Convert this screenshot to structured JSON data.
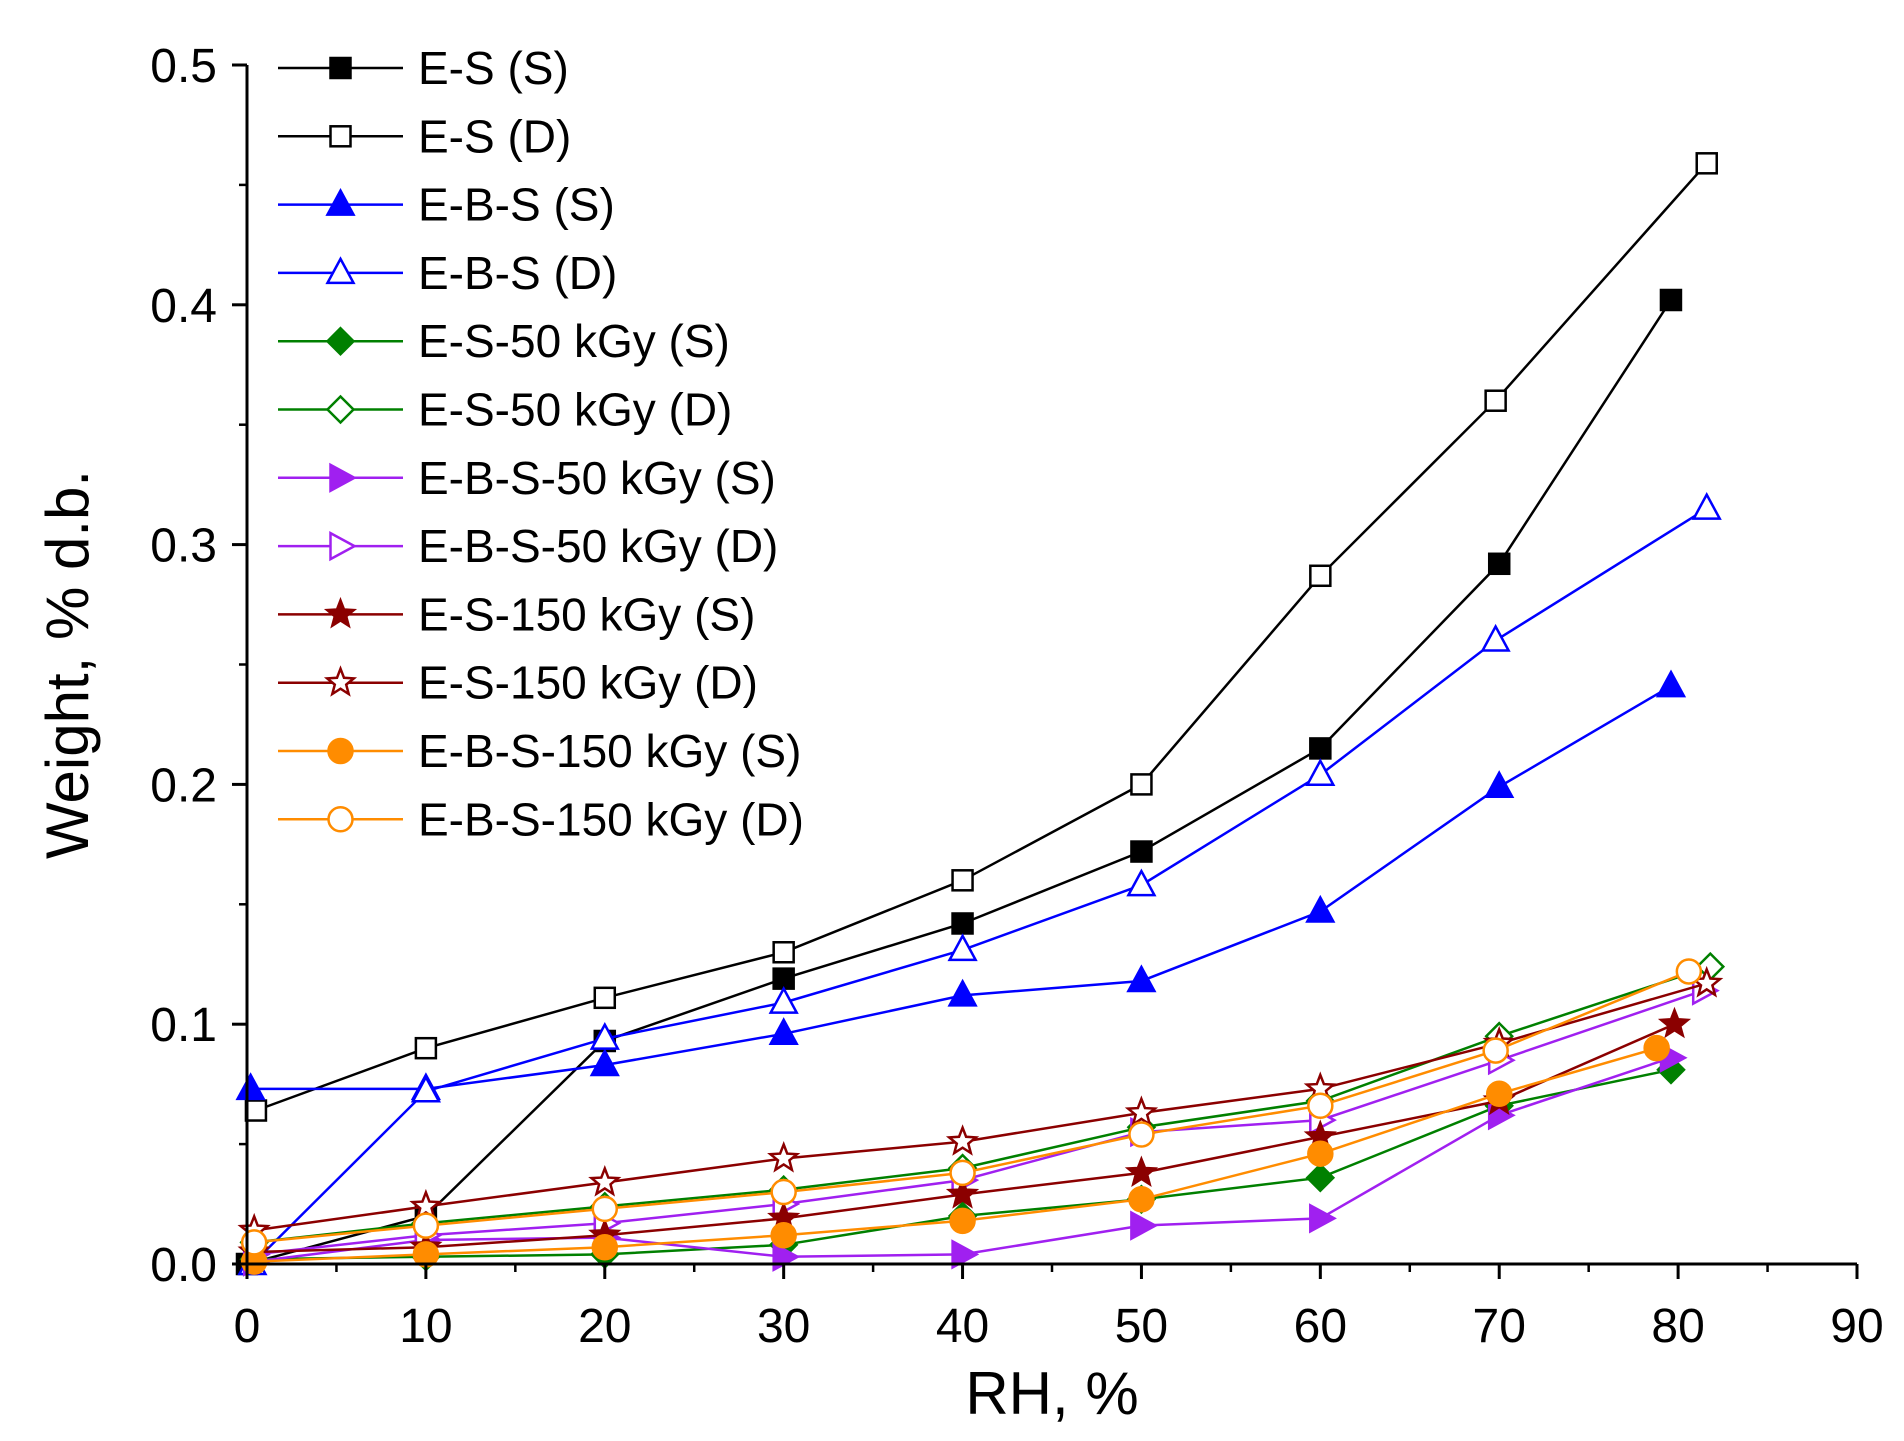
{
  "chart_data": {
    "type": "line",
    "xlabel": "RH, %",
    "ylabel": "Weight, % d.b.",
    "xlim": [
      0,
      90
    ],
    "ylim": [
      0,
      0.5
    ],
    "xticks": [
      "0",
      "10",
      "20",
      "30",
      "40",
      "50",
      "60",
      "70",
      "80",
      "90"
    ],
    "yticks": [
      "0.0",
      "0.1",
      "0.2",
      "0.3",
      "0.4",
      "0.5"
    ],
    "grid": false,
    "legend_position": "top-left",
    "series": [
      {
        "name": "E-S (S)",
        "color": "#000000",
        "marker": "square",
        "filled": true,
        "x": [
          0,
          10,
          20,
          30,
          40,
          50,
          60,
          70,
          79.6
        ],
        "y": [
          0.0,
          0.02,
          0.093,
          0.119,
          0.142,
          0.172,
          0.215,
          0.292,
          0.402
        ]
      },
      {
        "name": "E-S (D)",
        "color": "#000000",
        "marker": "square",
        "filled": false,
        "x": [
          0.5,
          10,
          20,
          30,
          40,
          50,
          60,
          69.8,
          81.6
        ],
        "y": [
          0.064,
          0.09,
          0.111,
          0.13,
          0.16,
          0.2,
          0.287,
          0.36,
          0.459
        ]
      },
      {
        "name": "E-B-S (S)",
        "color": "#0000ff",
        "marker": "triangle-up",
        "filled": true,
        "x": [
          0.2,
          10,
          20,
          30,
          40,
          50,
          60,
          70,
          79.6
        ],
        "y": [
          0.073,
          0.073,
          0.083,
          0.096,
          0.112,
          0.118,
          0.147,
          0.199,
          0.241
        ]
      },
      {
        "name": "E-B-S (D)",
        "color": "#0000ff",
        "marker": "triangle-up",
        "filled": false,
        "x": [
          0.3,
          10,
          20,
          30,
          40,
          50,
          60,
          69.8,
          81.6
        ],
        "y": [
          0.0,
          0.072,
          0.094,
          0.109,
          0.131,
          0.158,
          0.204,
          0.26,
          0.315
        ]
      },
      {
        "name": "E-S-50 kGy (S)",
        "color": "#008000",
        "marker": "diamond",
        "filled": true,
        "x": [
          0.4,
          10,
          20,
          30,
          40,
          50,
          60,
          70,
          79.6
        ],
        "y": [
          0.002,
          0.003,
          0.004,
          0.008,
          0.02,
          0.027,
          0.036,
          0.066,
          0.081
        ]
      },
      {
        "name": "E-S-50 kGy (D)",
        "color": "#008000",
        "marker": "diamond",
        "filled": false,
        "x": [
          0.4,
          10,
          20,
          30,
          40,
          50,
          60,
          70,
          81.8
        ],
        "y": [
          0.009,
          0.017,
          0.024,
          0.031,
          0.04,
          0.057,
          0.068,
          0.095,
          0.124
        ]
      },
      {
        "name": "E-B-S-50 kGy (S)",
        "color": "#a020f0",
        "marker": "triangle-right",
        "filled": true,
        "x": [
          0.4,
          10,
          20,
          30,
          40,
          50,
          60,
          70,
          79.6
        ],
        "y": [
          0.001,
          0.01,
          0.011,
          0.003,
          0.004,
          0.016,
          0.019,
          0.062,
          0.086
        ]
      },
      {
        "name": "E-B-S-50 kGy (D)",
        "color": "#a020f0",
        "marker": "triangle-right",
        "filled": false,
        "x": [
          0.4,
          10,
          20,
          30,
          40,
          50,
          60,
          70,
          81.4
        ],
        "y": [
          0.004,
          0.012,
          0.017,
          0.025,
          0.035,
          0.055,
          0.06,
          0.085,
          0.114
        ]
      },
      {
        "name": "E-S-150 kGy (S)",
        "color": "#8b0000",
        "marker": "star",
        "filled": true,
        "x": [
          0.4,
          10,
          20,
          30,
          40,
          50,
          60,
          70,
          79.8
        ],
        "y": [
          0.005,
          0.007,
          0.012,
          0.019,
          0.029,
          0.038,
          0.053,
          0.068,
          0.1
        ]
      },
      {
        "name": "E-S-150 kGy (D)",
        "color": "#8b0000",
        "marker": "star",
        "filled": false,
        "x": [
          0.4,
          10,
          20,
          30,
          40,
          50,
          60,
          70,
          81.6
        ],
        "y": [
          0.014,
          0.024,
          0.034,
          0.044,
          0.051,
          0.063,
          0.073,
          0.092,
          0.117
        ]
      },
      {
        "name": "E-B-S-150 kGy (S)",
        "color": "#ff8c00",
        "marker": "circle",
        "filled": true,
        "x": [
          0.4,
          10,
          20,
          30,
          40,
          50,
          60,
          70,
          78.8
        ],
        "y": [
          0.001,
          0.004,
          0.007,
          0.012,
          0.018,
          0.027,
          0.046,
          0.071,
          0.09
        ]
      },
      {
        "name": "E-B-S-150 kGy (D)",
        "color": "#ff8c00",
        "marker": "circle",
        "filled": false,
        "x": [
          0.4,
          10,
          20,
          30,
          40,
          50,
          60,
          69.8,
          80.6
        ],
        "y": [
          0.009,
          0.016,
          0.023,
          0.03,
          0.038,
          0.054,
          0.066,
          0.089,
          0.122
        ]
      }
    ]
  }
}
